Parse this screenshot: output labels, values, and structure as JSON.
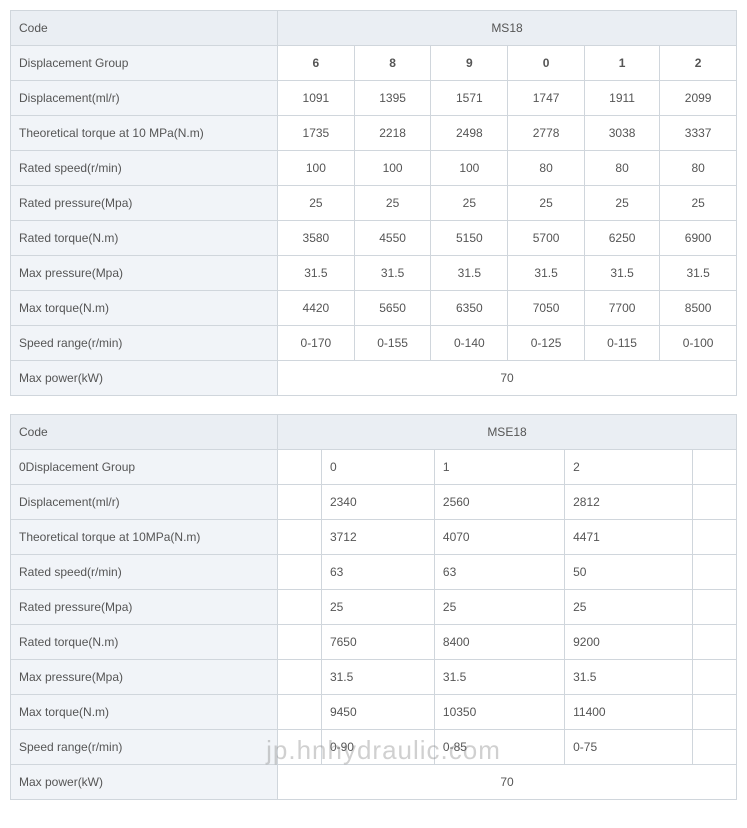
{
  "table1": {
    "code_label": "Code",
    "code_value": "MS18",
    "rows": [
      {
        "label": "Displacement Group",
        "vals": [
          "6",
          "8",
          "9",
          "0",
          "1",
          "2"
        ],
        "bold": true
      },
      {
        "label": "Displacement(ml/r)",
        "vals": [
          "1091",
          "1395",
          "1571",
          "1747",
          "1911",
          "2099"
        ]
      },
      {
        "label": "Theoretical torque at 10 MPa(N.m)",
        "vals": [
          "1735",
          "2218",
          "2498",
          "2778",
          "3038",
          "3337"
        ]
      },
      {
        "label": "Rated speed(r/min)",
        "vals": [
          "100",
          "100",
          "100",
          "80",
          "80",
          "80"
        ]
      },
      {
        "label": "Rated pressure(Mpa)",
        "vals": [
          "25",
          "25",
          "25",
          "25",
          "25",
          "25"
        ]
      },
      {
        "label": "Rated torque(N.m)",
        "vals": [
          "3580",
          "4550",
          "5150",
          "5700",
          "6250",
          "6900"
        ]
      },
      {
        "label": "Max pressure(Mpa)",
        "vals": [
          "31.5",
          "31.5",
          "31.5",
          "31.5",
          "31.5",
          "31.5"
        ]
      },
      {
        "label": "Max torque(N.m)",
        "vals": [
          "4420",
          "5650",
          "6350",
          "7050",
          "7700",
          "8500"
        ]
      },
      {
        "label": "Speed range(r/min)",
        "vals": [
          "0-170",
          "0-155",
          "0-140",
          "0-125",
          "0-115",
          "0-100"
        ]
      }
    ],
    "max_power_label": "Max power(kW)",
    "max_power_value": "70"
  },
  "table2": {
    "code_label": "Code",
    "code_value": "MSE18",
    "rows": [
      {
        "label": "0Displacement Group",
        "vals": [
          "",
          "0",
          "1",
          "2",
          ""
        ]
      },
      {
        "label": "Displacement(ml/r)",
        "vals": [
          "",
          "2340",
          "2560",
          "2812",
          ""
        ]
      },
      {
        "label": "Theoretical torque at 10MPa(N.m)",
        "vals": [
          "",
          "3712",
          "4070",
          "4471",
          ""
        ]
      },
      {
        "label": "Rated speed(r/min)",
        "vals": [
          "",
          "63",
          "63",
          "50",
          ""
        ]
      },
      {
        "label": "Rated pressure(Mpa)",
        "vals": [
          "",
          "25",
          "25",
          "25",
          ""
        ]
      },
      {
        "label": "Rated torque(N.m)",
        "vals": [
          "",
          "7650",
          "8400",
          "9200",
          ""
        ]
      },
      {
        "label": "Max pressure(Mpa)",
        "vals": [
          "",
          "31.5",
          "31.5",
          "31.5",
          ""
        ]
      },
      {
        "label": "Max torque(N.m)",
        "vals": [
          "",
          "9450",
          "10350",
          "11400",
          ""
        ]
      },
      {
        "label": "Speed range(r/min)",
        "vals": [
          "",
          "0-90",
          "0-85",
          "0-75",
          ""
        ]
      }
    ],
    "max_power_label": "Max power(kW)",
    "max_power_value": "70"
  },
  "watermark": "jp.hnhydraulic.com",
  "colors": {
    "border": "#d0d6dc",
    "header_bg": "#eaeef3",
    "label_bg": "#f1f4f8",
    "text": "#555555"
  }
}
